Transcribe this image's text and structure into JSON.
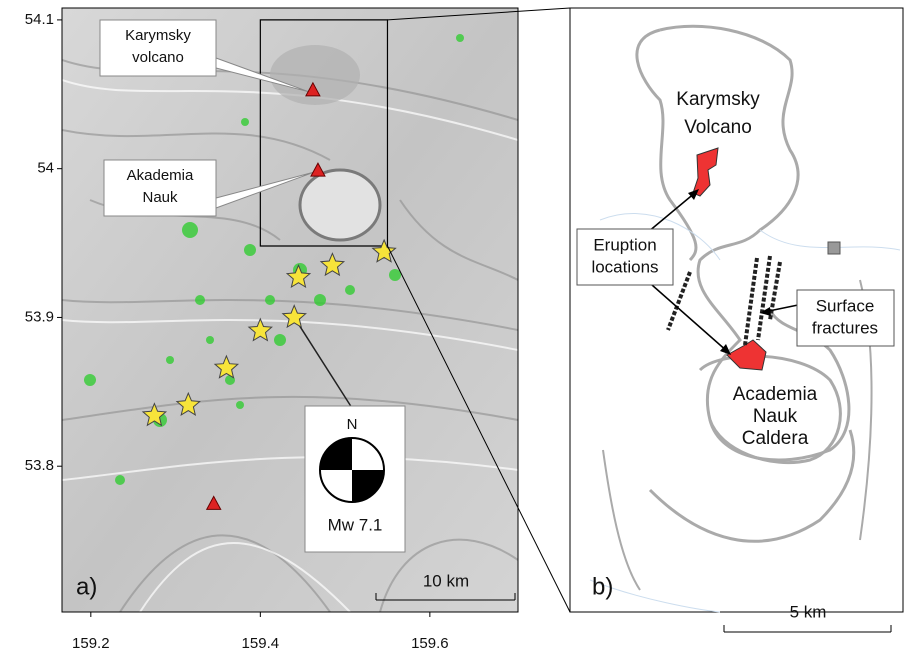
{
  "panel_a": {
    "label": "a)",
    "xlim": [
      159.166,
      159.704
    ],
    "ylim": [
      53.702,
      54.108
    ],
    "xticks": [
      159.2,
      159.4,
      159.6
    ],
    "yticks": [
      53.8,
      53.9,
      54,
      54.1
    ],
    "volcanoes": [
      {
        "lines": [
          "Karymsky",
          "volcano"
        ],
        "lon": 159.462,
        "lat": 54.053
      },
      {
        "lines": [
          "Akademia",
          "Nauk"
        ],
        "lon": 159.468,
        "lat": 53.999
      },
      {
        "lon": 159.345,
        "lat": 53.775
      }
    ],
    "stars": {
      "lon": [
        159.546,
        159.485,
        159.445,
        159.44,
        159.4,
        159.36,
        159.315,
        159.275
      ],
      "lat": [
        53.944,
        53.935,
        53.927,
        53.9,
        53.891,
        53.866,
        53.841,
        53.834
      ]
    },
    "inset": {
      "lon": [
        159.4,
        159.55
      ],
      "lat": [
        53.948,
        54.1
      ]
    },
    "mechanism": {
      "north": "N",
      "label": "Mw 7.1"
    },
    "scale_bar": "10 km"
  },
  "panel_b": {
    "label": "b)",
    "volcano": [
      "Karymsky",
      "Volcano"
    ],
    "eruption": [
      "Eruption",
      "locations"
    ],
    "fractures": [
      "Surface",
      "fractures"
    ],
    "caldera": [
      "Academia",
      "Nauk",
      "Caldera"
    ],
    "scale_bar": "5 km"
  }
}
